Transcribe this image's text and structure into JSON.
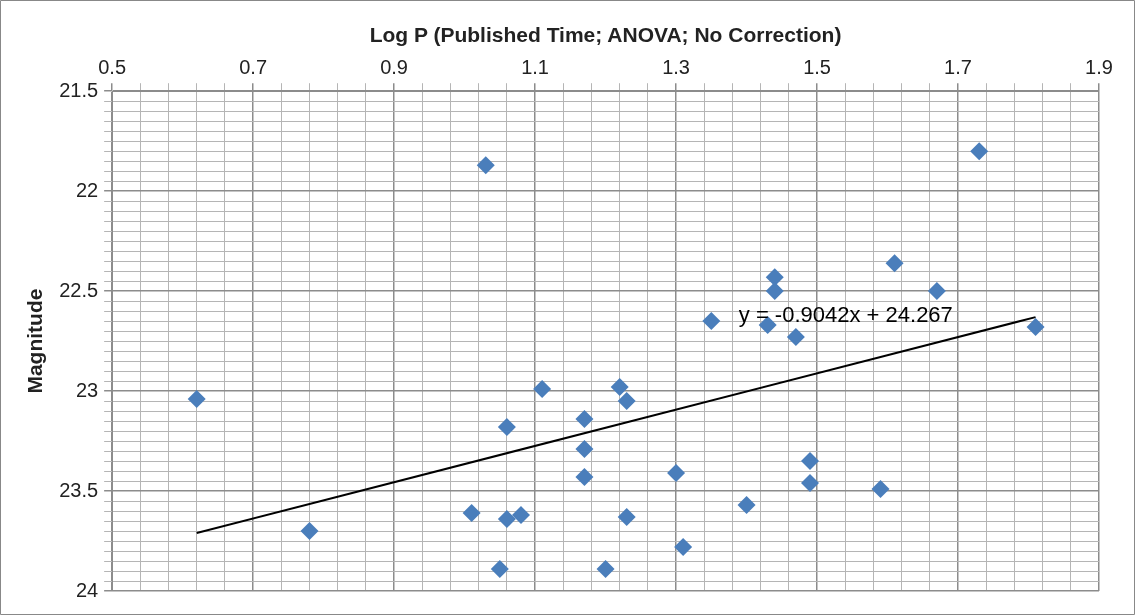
{
  "chart_data": {
    "type": "scatter",
    "xlabel": "Log P (Published Time; ANOVA; No Correction)",
    "ylabel": "Magnitude",
    "xlim": [
      0.5,
      1.9
    ],
    "ylim": [
      24,
      21.5
    ],
    "xticks": [
      0.5,
      {
        "value": 0.54,
        "label": null
      },
      {
        "value": 0.58,
        "label": null
      },
      {
        "value": 0.62,
        "label": null
      },
      {
        "value": 0.66,
        "label": null
      },
      0.7,
      {
        "value": 0.74,
        "label": null
      },
      {
        "value": 0.78,
        "label": null
      },
      {
        "value": 0.82,
        "label": null
      },
      {
        "value": 0.86,
        "label": null
      },
      0.9,
      {
        "value": 0.94,
        "label": null
      },
      {
        "value": 0.98,
        "label": null
      },
      {
        "value": 1.02,
        "label": null
      },
      {
        "value": 1.06,
        "label": null
      },
      1.1,
      {
        "value": 1.14,
        "label": null
      },
      {
        "value": 1.18,
        "label": null
      },
      {
        "value": 1.22,
        "label": null
      },
      {
        "value": 1.26,
        "label": null
      },
      1.3,
      {
        "value": 1.34,
        "label": null
      },
      {
        "value": 1.38,
        "label": null
      },
      {
        "value": 1.42,
        "label": null
      },
      {
        "value": 1.46,
        "label": null
      },
      1.5,
      {
        "value": 1.54,
        "label": null
      },
      {
        "value": 1.58,
        "label": null
      },
      {
        "value": 1.62,
        "label": null
      },
      {
        "value": 1.66,
        "label": null
      },
      1.7,
      {
        "value": 1.74,
        "label": null
      },
      {
        "value": 1.78,
        "label": null
      },
      {
        "value": 1.82,
        "label": null
      },
      {
        "value": 1.86,
        "label": null
      },
      1.9
    ],
    "yticks": [
      21.5,
      {
        "value": 21.55,
        "label": null
      },
      {
        "value": 21.6,
        "label": null
      },
      {
        "value": 21.65,
        "label": null
      },
      {
        "value": 21.7,
        "label": null
      },
      {
        "value": 21.75,
        "label": null
      },
      {
        "value": 21.8,
        "label": null
      },
      {
        "value": 21.85,
        "label": null
      },
      {
        "value": 21.9,
        "label": null
      },
      {
        "value": 21.95,
        "label": null
      },
      22,
      {
        "value": 22.05,
        "label": null
      },
      {
        "value": 22.1,
        "label": null
      },
      {
        "value": 22.15,
        "label": null
      },
      {
        "value": 22.2,
        "label": null
      },
      {
        "value": 22.25,
        "label": null
      },
      {
        "value": 22.3,
        "label": null
      },
      {
        "value": 22.35,
        "label": null
      },
      {
        "value": 22.4,
        "label": null
      },
      {
        "value": 22.45,
        "label": null
      },
      22.5,
      {
        "value": 22.55,
        "label": null
      },
      {
        "value": 22.6,
        "label": null
      },
      {
        "value": 22.65,
        "label": null
      },
      {
        "value": 22.7,
        "label": null
      },
      {
        "value": 22.75,
        "label": null
      },
      {
        "value": 22.8,
        "label": null
      },
      {
        "value": 22.85,
        "label": null
      },
      {
        "value": 22.9,
        "label": null
      },
      {
        "value": 22.95,
        "label": null
      },
      23,
      {
        "value": 23.05,
        "label": null
      },
      {
        "value": 23.1,
        "label": null
      },
      {
        "value": 23.15,
        "label": null
      },
      {
        "value": 23.2,
        "label": null
      },
      {
        "value": 23.25,
        "label": null
      },
      {
        "value": 23.3,
        "label": null
      },
      {
        "value": 23.35,
        "label": null
      },
      {
        "value": 23.4,
        "label": null
      },
      {
        "value": 23.45,
        "label": null
      },
      23.5,
      {
        "value": 23.55,
        "label": null
      },
      {
        "value": 23.6,
        "label": null
      },
      {
        "value": 23.65,
        "label": null
      },
      {
        "value": 23.7,
        "label": null
      },
      {
        "value": 23.75,
        "label": null
      },
      {
        "value": 23.8,
        "label": null
      },
      {
        "value": 23.85,
        "label": null
      },
      {
        "value": 23.9,
        "label": null
      },
      {
        "value": 23.95,
        "label": null
      },
      24
    ],
    "grid": true,
    "legend": false,
    "series": [
      {
        "color": "#4a7ebb",
        "marker": "diamond",
        "x": [
          0.62,
          0.78,
          1.03,
          1.01,
          1.06,
          1.06,
          1.08,
          1.05,
          1.11,
          1.17,
          1.17,
          1.17,
          1.2,
          1.22,
          1.23,
          1.23,
          1.3,
          1.31,
          1.35,
          1.4,
          1.43,
          1.44,
          1.44,
          1.47,
          1.49,
          1.49,
          1.59,
          1.61,
          1.67,
          1.73,
          1.81
        ],
        "values": [
          23.04,
          23.7,
          21.87,
          23.61,
          23.18,
          23.64,
          23.62,
          23.89,
          22.99,
          23.14,
          23.29,
          23.43,
          23.89,
          22.98,
          23.05,
          23.63,
          23.41,
          23.78,
          22.65,
          23.57,
          22.67,
          22.43,
          22.5,
          22.73,
          23.35,
          23.46,
          23.49,
          22.36,
          22.5,
          21.8,
          22.68
        ]
      },
      {
        "type": "line",
        "color": "#000000",
        "marker": "none",
        "line_style": "solid",
        "x": [
          0.62,
          1.81
        ],
        "values": [
          23.71,
          22.63
        ]
      }
    ],
    "annotations": [
      "y = -0.9042x + 24.267"
    ]
  }
}
